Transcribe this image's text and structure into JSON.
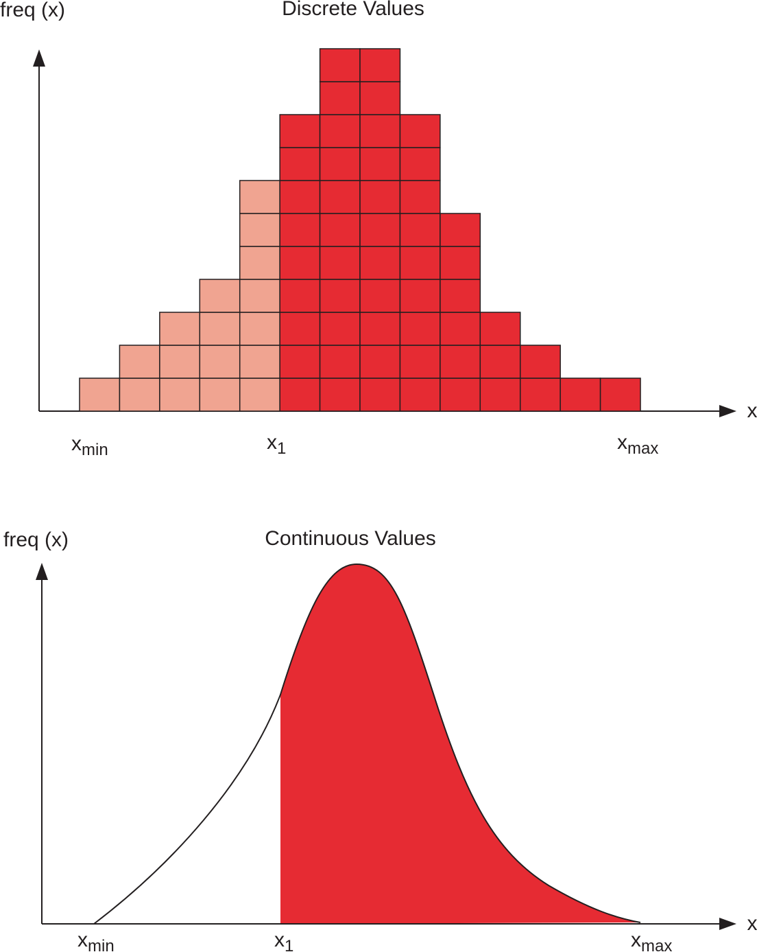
{
  "chart_data": [
    {
      "type": "cells",
      "title": "Discrete Values",
      "y_label": "freq (x)",
      "x_label": "x",
      "values": [
        1,
        2,
        3,
        4,
        7,
        9,
        11,
        11,
        9,
        6,
        3,
        2,
        1,
        1
      ],
      "colors": [
        "#f0a491",
        "#f0a491",
        "#f0a491",
        "#f0a491",
        "#f0a491",
        "#e62b33",
        "#e62b33",
        "#e62b33",
        "#e62b33",
        "#e62b33",
        "#e62b33",
        "#e62b33",
        "#e62b33",
        "#e62b33"
      ],
      "markers": [
        {
          "base": "x",
          "sub": "min"
        },
        {
          "base": "x",
          "sub": "1"
        },
        {
          "base": "x",
          "sub": "max"
        }
      ]
    },
    {
      "type": "curve",
      "title": "Continuous Values",
      "y_label": "freq (x)",
      "x_label": "x",
      "color": "#e62b33",
      "markers": [
        {
          "base": "x",
          "sub": "min"
        },
        {
          "base": "x",
          "sub": "1"
        },
        {
          "base": "x",
          "sub": "max"
        }
      ]
    }
  ]
}
